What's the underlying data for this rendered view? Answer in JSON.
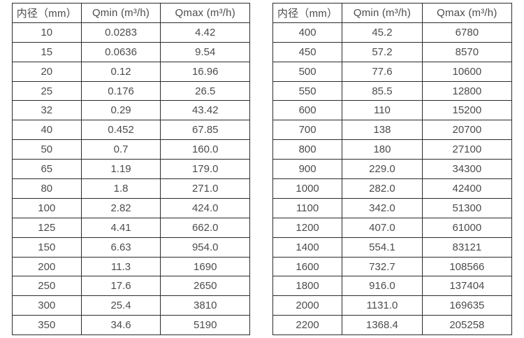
{
  "colors": {
    "background": "#ffffff",
    "border": "#2b2b2b",
    "text": "#4c4c4c"
  },
  "left_table": {
    "headers": [
      "内径（mm）",
      "Qmin (m³/h)",
      "Qmax (m³/h)"
    ],
    "rows": [
      [
        "10",
        "0.0283",
        "4.42"
      ],
      [
        "15",
        "0.0636",
        "9.54"
      ],
      [
        "20",
        "0.12",
        "16.96"
      ],
      [
        "25",
        "0.176",
        "26.5"
      ],
      [
        "32",
        "0.29",
        "43.42"
      ],
      [
        "40",
        "0.452",
        "67.85"
      ],
      [
        "50",
        "0.7",
        "160.0"
      ],
      [
        "65",
        "1.19",
        "179.0"
      ],
      [
        "80",
        "1.8",
        "271.0"
      ],
      [
        "100",
        "2.82",
        "424.0"
      ],
      [
        "125",
        "4.41",
        "662.0"
      ],
      [
        "150",
        "6.63",
        "954.0"
      ],
      [
        "200",
        "11.3",
        "1690"
      ],
      [
        "250",
        "17.6",
        "2650"
      ],
      [
        "300",
        "25.4",
        "3810"
      ],
      [
        "350",
        "34.6",
        "5190"
      ]
    ]
  },
  "right_table": {
    "headers": [
      "内径（mm）",
      "Qmin (m³/h)",
      "Qmax (m³/h)"
    ],
    "rows": [
      [
        "400",
        "45.2",
        "6780"
      ],
      [
        "450",
        "57.2",
        "8570"
      ],
      [
        "500",
        "77.6",
        "10600"
      ],
      [
        "550",
        "85.5",
        "12800"
      ],
      [
        "600",
        "110",
        "15200"
      ],
      [
        "700",
        "138",
        "20700"
      ],
      [
        "800",
        "180",
        "27100"
      ],
      [
        "900",
        "229.0",
        "34300"
      ],
      [
        "1000",
        "282.0",
        "42400"
      ],
      [
        "1100",
        "342.0",
        "51300"
      ],
      [
        "1200",
        "407.0",
        "61000"
      ],
      [
        "1400",
        "554.1",
        "83121"
      ],
      [
        "1600",
        "732.7",
        "108566"
      ],
      [
        "1800",
        "916.0",
        "137404"
      ],
      [
        "2000",
        "1131.0",
        "169635"
      ],
      [
        "2200",
        "1368.4",
        "205258"
      ]
    ]
  }
}
